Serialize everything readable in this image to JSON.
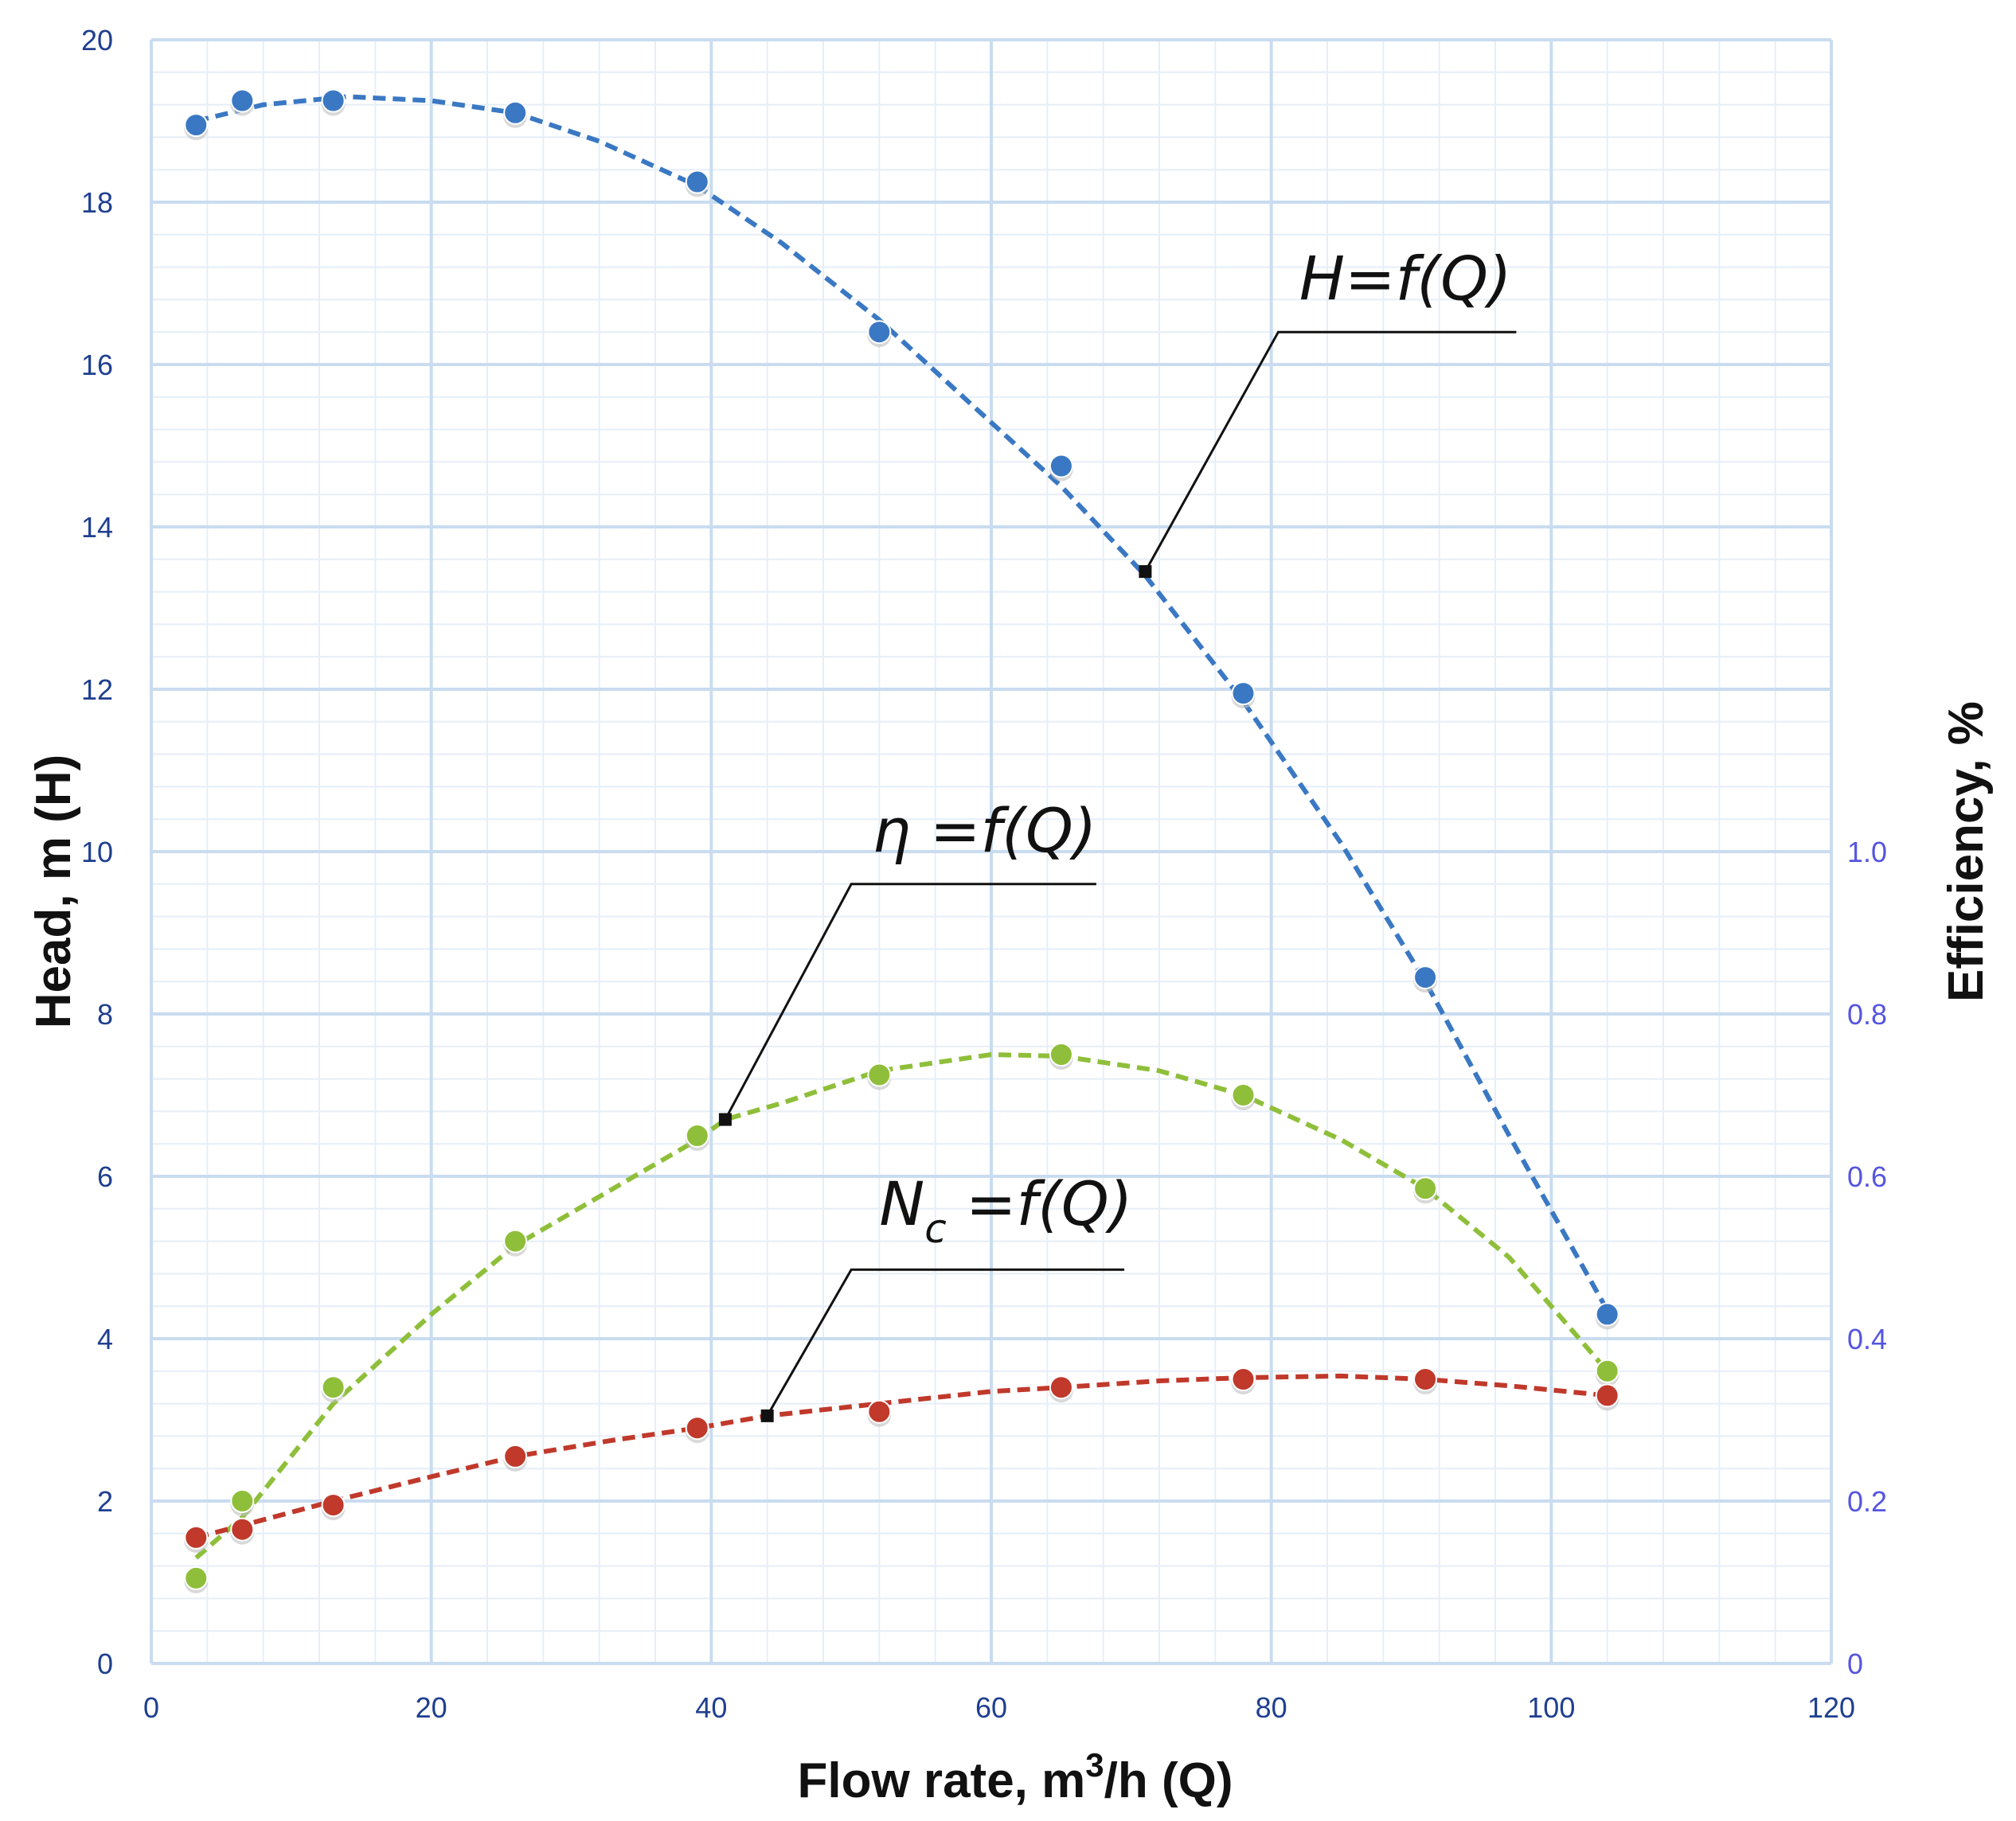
{
  "chart_data": {
    "type": "line",
    "title": "",
    "xlabel_main": "Flow rate, m",
    "xlabel_sup": "3",
    "xlabel_tail": "/h (Q)",
    "ylabel_left": "Head, m (H)",
    "ylabel_right": "Efficiency, %",
    "xlim": [
      0,
      120
    ],
    "ylim_left": [
      0,
      20
    ],
    "ylim_right": [
      0,
      2.0
    ],
    "x_ticks": [
      "0",
      "20",
      "40",
      "60",
      "80",
      "100",
      "120"
    ],
    "y_left_ticks": [
      "0",
      "2",
      "4",
      "6",
      "8",
      "10",
      "12",
      "14",
      "16",
      "18",
      "20"
    ],
    "y_right_ticks": [
      "0",
      "0.2",
      "0.4",
      "0.6",
      "0.8",
      "1.0"
    ],
    "grid": true,
    "x": [
      3.2,
      6.5,
      13,
      26,
      39,
      52,
      65,
      78,
      91,
      104
    ],
    "series": [
      {
        "axis": "left",
        "color": "#3a78c3",
        "values": [
          18.95,
          19.25,
          19.25,
          19.1,
          18.25,
          16.4,
          14.75,
          11.95,
          8.45,
          4.3
        ],
        "fit": [
          [
            3.2,
            19.0
          ],
          [
            8,
            19.2
          ],
          [
            14,
            19.3
          ],
          [
            20,
            19.25
          ],
          [
            26,
            19.1
          ],
          [
            32,
            18.75
          ],
          [
            39,
            18.2
          ],
          [
            45,
            17.5
          ],
          [
            52,
            16.55
          ],
          [
            58,
            15.6
          ],
          [
            65,
            14.5
          ],
          [
            71,
            13.4
          ],
          [
            78,
            11.85
          ],
          [
            85,
            10.1
          ],
          [
            91,
            8.4
          ],
          [
            97,
            6.5
          ],
          [
            104,
            4.35
          ]
        ],
        "annotation": {
          "label": "H=f(Q)",
          "sub": "",
          "label_tail": "",
          "anchor": [
            71,
            13.45
          ],
          "elbow": [
            80.5,
            16.4
          ],
          "line_end": [
            97.5,
            16.4
          ],
          "text_at": [
            82,
            16.8
          ]
        }
      },
      {
        "axis": "right",
        "color": "#8fbf3a",
        "values": [
          0.105,
          0.2,
          0.34,
          0.52,
          0.65,
          0.725,
          0.75,
          0.7,
          0.585,
          0.36
        ],
        "fit": [
          [
            3.2,
            0.13
          ],
          [
            6.5,
            0.18
          ],
          [
            13,
            0.32
          ],
          [
            20,
            0.43
          ],
          [
            26,
            0.515
          ],
          [
            33,
            0.585
          ],
          [
            39,
            0.645
          ],
          [
            41,
            0.67
          ],
          [
            45,
            0.69
          ],
          [
            52,
            0.73
          ],
          [
            60,
            0.75
          ],
          [
            65,
            0.748
          ],
          [
            72,
            0.73
          ],
          [
            78,
            0.7
          ],
          [
            85,
            0.645
          ],
          [
            91,
            0.585
          ],
          [
            97,
            0.5
          ],
          [
            104,
            0.36
          ]
        ],
        "annotation": {
          "label": "η",
          "sub": "",
          "label_tail": " =f(Q)",
          "anchor": [
            41,
            0.67
          ],
          "elbow": [
            50,
            0.96
          ],
          "line_end": [
            67.5,
            0.96
          ],
          "text_at": [
            51.5,
            1.0
          ]
        }
      },
      {
        "axis": "right",
        "color": "#c0392b",
        "values": [
          0.155,
          0.165,
          0.195,
          0.255,
          0.29,
          0.31,
          0.34,
          0.35,
          0.35,
          0.33
        ],
        "fit": [
          [
            3.2,
            0.155
          ],
          [
            6.5,
            0.17
          ],
          [
            13,
            0.2
          ],
          [
            20,
            0.23
          ],
          [
            26,
            0.255
          ],
          [
            33,
            0.275
          ],
          [
            39,
            0.29
          ],
          [
            44,
            0.305
          ],
          [
            52,
            0.32
          ],
          [
            60,
            0.335
          ],
          [
            65,
            0.34
          ],
          [
            72,
            0.348
          ],
          [
            78,
            0.352
          ],
          [
            85,
            0.354
          ],
          [
            91,
            0.35
          ],
          [
            97,
            0.342
          ],
          [
            104,
            0.33
          ]
        ],
        "annotation": {
          "label": "N",
          "sub": "c",
          "label_tail": " =f(Q)",
          "anchor": [
            44,
            0.305
          ],
          "elbow": [
            50,
            0.485
          ],
          "line_end": [
            69.5,
            0.485
          ],
          "text_at": [
            52,
            0.54
          ]
        }
      }
    ]
  }
}
